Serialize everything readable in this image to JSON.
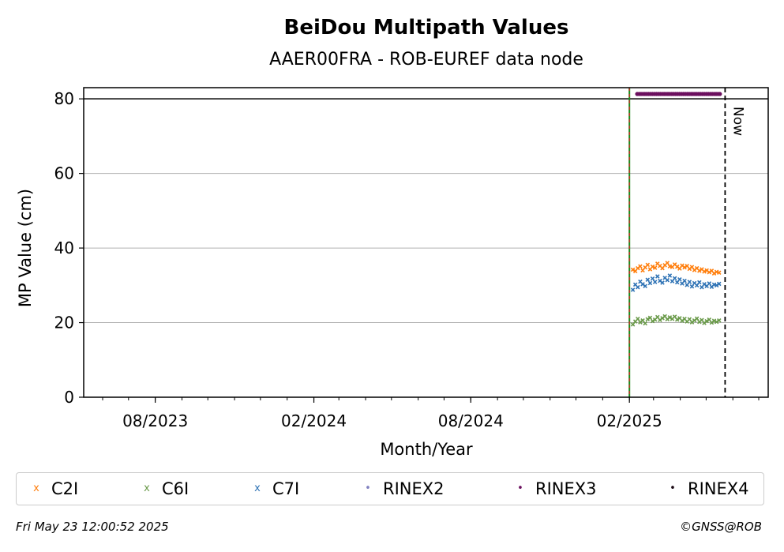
{
  "chart_data": {
    "type": "scatter",
    "title": "BeiDou Multipath Values",
    "subtitle": "AAER00FRA - ROB-EUREF data node",
    "xlabel": "Month/Year",
    "ylabel": "MP Value (cm)",
    "ylim": [
      0,
      83
    ],
    "xlim": [
      "2023-05-10",
      "2025-07-12"
    ],
    "x_ticks": [
      "08/2023",
      "02/2024",
      "08/2024",
      "02/2025"
    ],
    "x_tick_dates": [
      "2023-08-01",
      "2024-02-01",
      "2024-08-01",
      "2025-02-01"
    ],
    "y_ticks": [
      0,
      20,
      40,
      60,
      80
    ],
    "grid": "horizontal",
    "hline": 80,
    "vlines": [
      {
        "date": "2025-02-01",
        "style": "green-red-dashed",
        "label": ""
      },
      {
        "date": "2025-05-23",
        "style": "black-dashed",
        "label": "Now"
      }
    ],
    "series": [
      {
        "name": "C2I",
        "color": "#ff7f0e",
        "marker": "x",
        "x_start": "2025-02-05",
        "x_end": "2025-05-16",
        "values": [
          34.2,
          33.8,
          34.6,
          35.1,
          34.0,
          34.8,
          35.5,
          34.3,
          35.0,
          34.7,
          35.8,
          35.2,
          34.6,
          35.4,
          36.0,
          35.1,
          34.9,
          35.6,
          35.0,
          34.5,
          35.3,
          34.8,
          35.2,
          34.4,
          34.9,
          34.1,
          34.6,
          33.9,
          34.3,
          33.7,
          34.0,
          33.5,
          33.9,
          33.2,
          33.6,
          33.4
        ]
      },
      {
        "name": "C6I",
        "color": "#6a9a4a",
        "marker": "x",
        "x_start": "2025-02-05",
        "x_end": "2025-05-16",
        "values": [
          19.5,
          20.3,
          21.0,
          20.1,
          20.6,
          19.8,
          20.9,
          21.3,
          20.4,
          20.8,
          21.5,
          20.7,
          21.2,
          21.7,
          20.9,
          21.4,
          21.0,
          21.6,
          20.8,
          21.2,
          20.5,
          21.0,
          20.3,
          20.9,
          20.1,
          20.6,
          21.1,
          20.2,
          20.7,
          19.9,
          20.4,
          20.8,
          20.0,
          20.5,
          20.2,
          20.6
        ]
      },
      {
        "name": "C7I",
        "color": "#2f73b5",
        "marker": "x",
        "x_start": "2025-02-05",
        "x_end": "2025-05-16",
        "values": [
          28.8,
          30.2,
          29.5,
          31.0,
          30.3,
          29.8,
          31.5,
          30.6,
          31.8,
          30.9,
          32.4,
          31.2,
          30.7,
          32.0,
          31.4,
          32.6,
          31.1,
          31.9,
          30.8,
          31.6,
          30.5,
          31.2,
          30.1,
          30.9,
          29.7,
          30.6,
          30.0,
          30.8,
          29.5,
          30.3,
          29.8,
          30.5,
          29.6,
          30.2,
          30.0,
          30.4
        ]
      },
      {
        "name": "RINEX2",
        "color": "#8080c0",
        "marker": "dot",
        "values": []
      },
      {
        "name": "RINEX3",
        "color": "#6b0f5e",
        "marker": "dot",
        "x_start": "2025-02-10",
        "x_end": "2025-05-17",
        "constant": 81.3,
        "count": 44
      },
      {
        "name": "RINEX4",
        "color": "#1a0a14",
        "marker": "dot",
        "values": []
      }
    ]
  },
  "legend": [
    {
      "label": "C2I",
      "symbol": "x",
      "color": "#ff7f0e"
    },
    {
      "label": "C6I",
      "symbol": "x",
      "color": "#6a9a4a"
    },
    {
      "label": "C7I",
      "symbol": "x",
      "color": "#2f73b5"
    },
    {
      "label": "RINEX2",
      "symbol": "•",
      "color": "#8080c0"
    },
    {
      "label": "RINEX3",
      "symbol": "•",
      "color": "#6b0f5e"
    },
    {
      "label": "RINEX4",
      "symbol": "•",
      "color": "#1a0a14"
    }
  ],
  "footer": {
    "timestamp": "Fri May 23 12:00:52 2025",
    "credit": "©GNSS@ROB"
  }
}
